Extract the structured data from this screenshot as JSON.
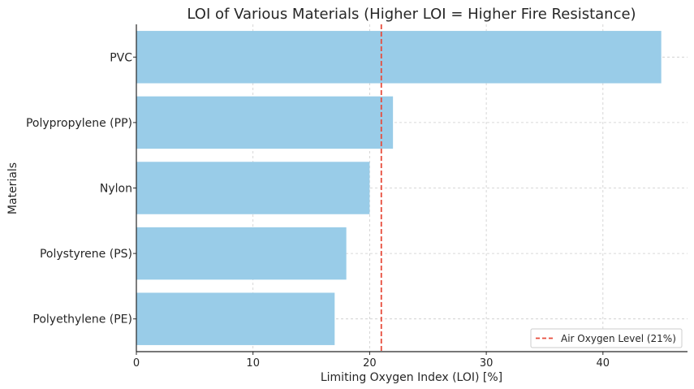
{
  "chart_data": {
    "type": "bar",
    "orientation": "horizontal",
    "title": "LOI of Various Materials (Higher LOI = Higher Fire Resistance)",
    "xlabel": "Limiting Oxygen Index (LOI) [%]",
    "ylabel": "Materials",
    "categories": [
      "Polyethylene (PE)",
      "Polystyrene (PS)",
      "Nylon",
      "Polypropylene (PP)",
      "PVC"
    ],
    "values": [
      17,
      18,
      20,
      22,
      45
    ],
    "xlim": [
      0,
      47.25
    ],
    "xticks": [
      "0",
      "10",
      "20",
      "30",
      "40"
    ],
    "xtick_values": [
      0,
      10,
      20,
      30,
      40
    ],
    "grid": true,
    "reference_line": {
      "value": 21,
      "label": "Air Oxygen Level (21%)",
      "color": "#e74c3c",
      "style": "dashed"
    },
    "legend_position": "lower-right",
    "bar_color": "#99cce8"
  }
}
